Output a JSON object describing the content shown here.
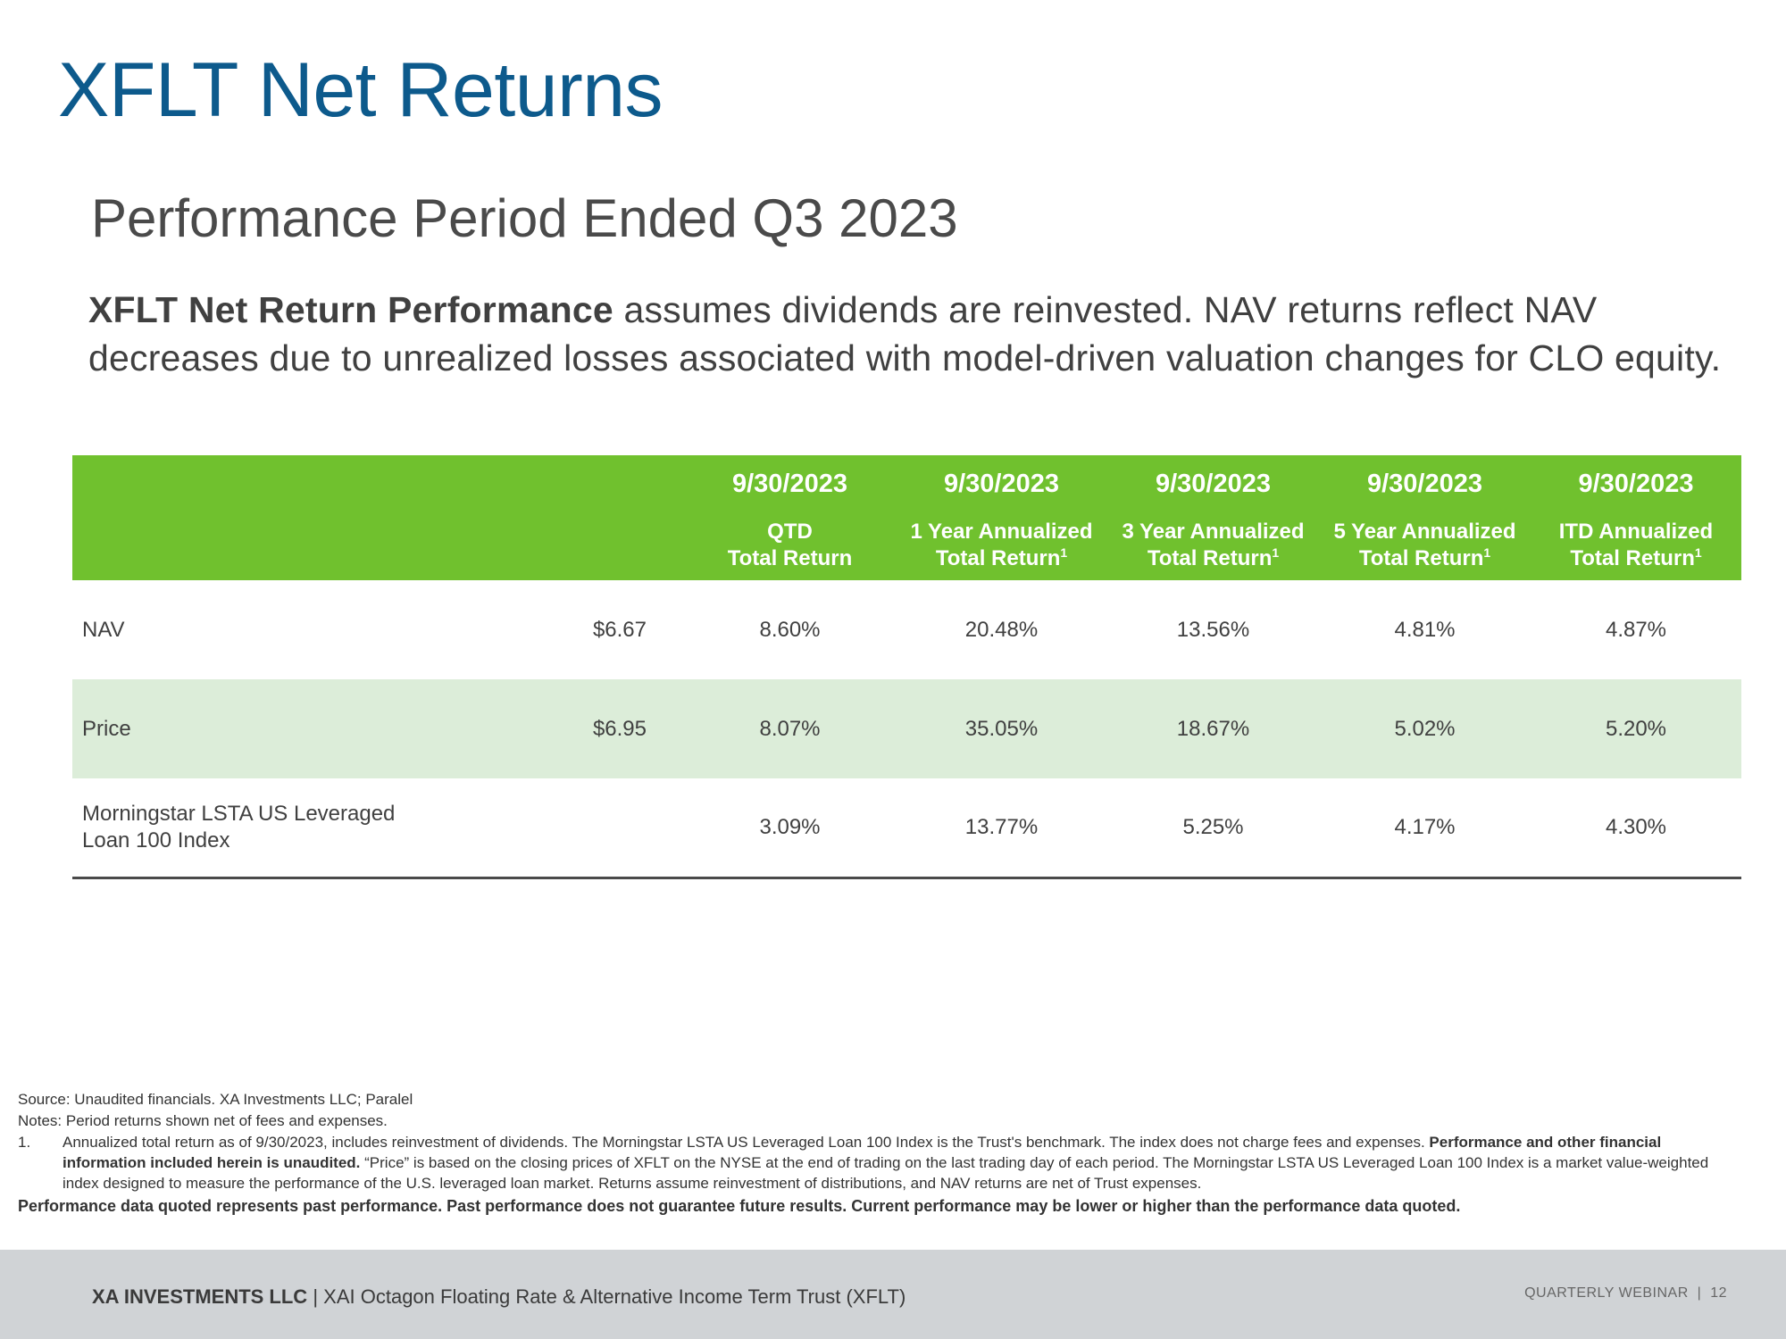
{
  "title": "XFLT Net Returns",
  "subtitle": "Performance Period Ended Q3 2023",
  "intro": {
    "bold": "XFLT Net Return Performance",
    "rest": " assumes dividends are reinvested. NAV returns reflect NAV decreases due to unrealized losses associated with model-driven valuation changes for CLO equity."
  },
  "table": {
    "columns": [
      {
        "date": "9/30/2023",
        "line1": "QTD",
        "line2": "Total Return",
        "sup": ""
      },
      {
        "date": "9/30/2023",
        "line1": "1 Year Annualized",
        "line2": "Total Return",
        "sup": "1"
      },
      {
        "date": "9/30/2023",
        "line1": "3 Year Annualized",
        "line2": "Total Return",
        "sup": "1"
      },
      {
        "date": "9/30/2023",
        "line1": "5 Year Annualized",
        "line2": "Total Return",
        "sup": "1"
      },
      {
        "date": "9/30/2023",
        "line1": "ITD Annualized",
        "line2": "Total Return",
        "sup": "1"
      }
    ],
    "rows": [
      {
        "name_line1": "NAV",
        "name_line2": "",
        "price": "$6.67",
        "values": [
          "8.60%",
          "20.48%",
          "13.56%",
          "4.81%",
          "4.87%"
        ]
      },
      {
        "name_line1": "Price",
        "name_line2": "",
        "price": "$6.95",
        "values": [
          "8.07%",
          "35.05%",
          "18.67%",
          "5.02%",
          "5.20%"
        ]
      },
      {
        "name_line1": "Morningstar LSTA US Leveraged",
        "name_line2": "Loan 100 Index",
        "price": "",
        "values": [
          "3.09%",
          "13.77%",
          "5.25%",
          "4.17%",
          "4.30%"
        ]
      }
    ]
  },
  "footnotes": {
    "source": "Source: Unaudited financials. XA Investments LLC; Paralel",
    "notes": "Notes: Period returns shown net of fees and expenses.",
    "item_number": "1.",
    "item_part1": "Annualized total return as of 9/30/2023, includes reinvestment of dividends. The Morningstar LSTA US Leveraged Loan 100 Index is the Trust's benchmark. The index does not charge fees and expenses. ",
    "item_bold": "Performance and other financial information included herein is unaudited.",
    "item_part2": " “Price” is based on the closing prices of XFLT on the NYSE at the end of trading on the last trading day of each period. The Morningstar LSTA US Leveraged Loan 100 Index is a market value-weighted index designed to measure the performance of the U.S. leveraged loan market. Returns assume reinvestment of distributions, and NAV returns are net of Trust expenses.",
    "disclaimer": "Performance data quoted represents past performance. Past performance does not guarantee future results. Current performance may be lower or higher than the performance data quoted."
  },
  "footer": {
    "company": "XA INVESTMENTS LLC",
    "separator": " | ",
    "trust": "XAI Octagon Floating Rate & Alternative Income Term Trust (XFLT)",
    "right_label": "QUARTERLY WEBINAR",
    "right_separator": "  |  ",
    "page_number": "12"
  }
}
